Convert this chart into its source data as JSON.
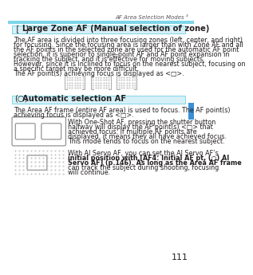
{
  "page_num": "111",
  "header_text": "AF Area Selection Modes ³",
  "cyan_bar_color": "#7dd6e8",
  "blue_sidebar_color": "#3b8fd4",
  "section1_box_color": "#d6f0f7",
  "section1_box_border": "#7dd6e8",
  "section1_icon": "[ ]",
  "section1_title": "Large Zone AF (Manual selection of zone)",
  "section1_body": "The AF area is divided into three focusing zones (left, center, and right)\nfor focusing. Since the focusing area is larger than with Zone AF and all\nthe AF points in the selected zone are used for the automatic AF point\nselection, it is superior to single-point AF and AF point expansion in\ntracking the subject, and it is effective for moving subjects.\nHowever, since it is inclined to focus on the nearest subject, focusing on\na specific target may be more difficult.\nThe AF point(s) achieving focus is displayed as <□>.",
  "section2_box_color": "#d6f0f7",
  "section2_box_border": "#7dd6e8",
  "section2_icon": "(○)",
  "section2_title": "Automatic selection AF",
  "section2_body1": "The Area AF frame (entire AF area) is used to focus. The AF point(s)\nachieving focus is displayed as <□>.",
  "section2_body2": "With One-Shot AF, pressing the shutter button\nhalfway will display the AF point(s) <□> that\nachieved focus. If multiple AF points are\ndisplayed, it means they all have achieved focus.\nThis mode tends to focus on the nearest subject.",
  "section2_body3": "With AI Servo AF, you can set the AI Servo AF’s\ninitial position with [AF4: Initial AF pt, (○) AI\nServo AF] (p.146). As long as the Area AF frame\ncan track the subject during shooting, focusing\nwill continue.",
  "bg_color": "#ffffff",
  "text_color": "#231f20",
  "body_fontsize": 5.8,
  "title_fontsize": 7.2,
  "header_fontsize": 5.0,
  "pagenum_fontsize": 8.0
}
